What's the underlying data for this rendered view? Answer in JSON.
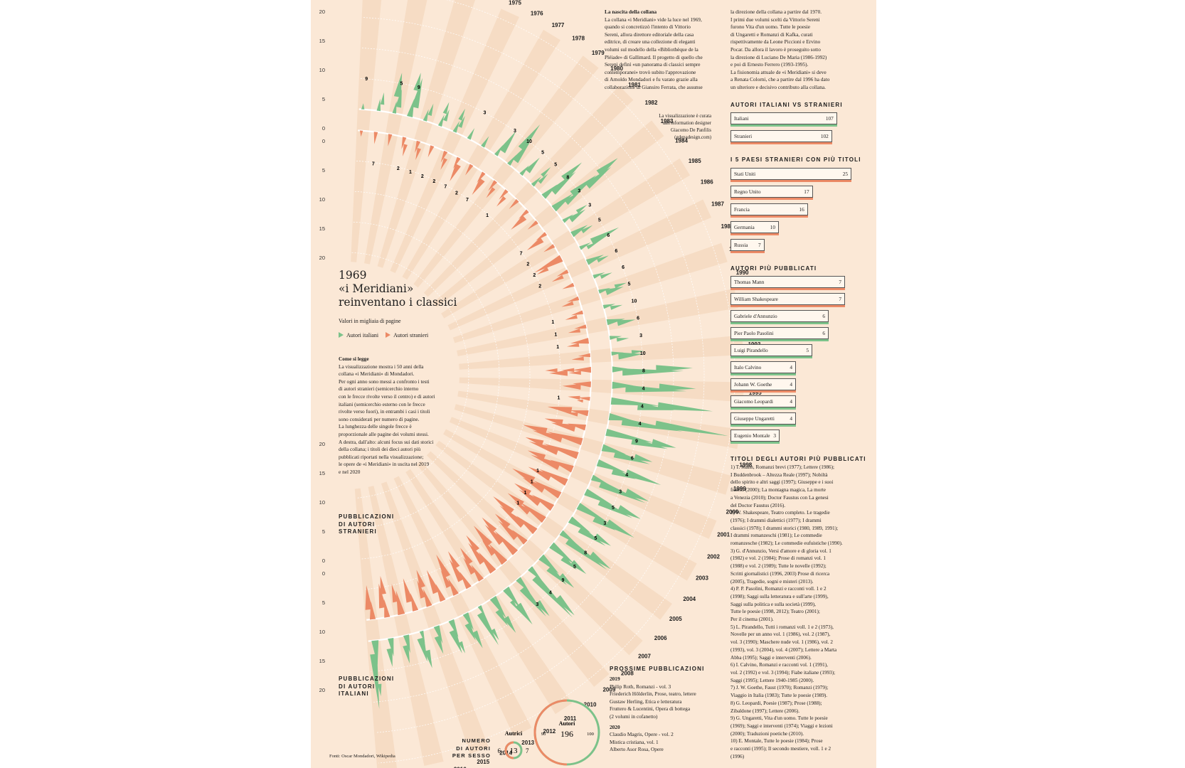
{
  "headline": {
    "year": "1969",
    "line2": "«i Meridiani»",
    "line3": "reinventano i classici",
    "subtitle": "Valori in migliaia di pagine"
  },
  "legend": {
    "italian": "Autori italiani",
    "foreign": "Autori stranieri",
    "italian_color": "#7cc28a",
    "foreign_color": "#ec8a66"
  },
  "howto": {
    "heading": "Come si legge",
    "lines": [
      "La visualizzazione mostra i 50 anni della",
      "collana «i Meridiani» di Mondadori.",
      "Per ogni anno sono messi a confronto i testi",
      "di autori stranieri (semicerchio interno",
      "con le frecce rivolte verso il centro) e di autori",
      "italiani (semicerchio esterno con le frecce",
      "rivolte verso fuori), in entrambi i casi i titoli",
      "sono considerati per numero di pagine.",
      "La lunghezza delle singole frecce è",
      "proporzionale alle pagine dei volumi stessi.",
      "A destra, dall'alto: alcuni focus sui dati storici",
      "della collana; i titoli dei dieci autori più",
      "pubblicati riportati nella visualizzazione;",
      "le opere de «i Meridiani» in uscita nel 2019",
      "e nel 2020"
    ]
  },
  "section_labels": {
    "foreign": [
      "PUBBLICAZIONI",
      "DI AUTORI",
      "STRANIERI"
    ],
    "italian": [
      "PUBBLICAZIONI",
      "DI AUTORI",
      "ITALIANI"
    ]
  },
  "intro": {
    "heading": "La nascita della collana",
    "col1": [
      "La collana «i Meridiani» vide la luce nel 1969,",
      "quando si concretizzò l'intento di Vittorio",
      "Sereni, allora direttore editoriale della casa",
      "editrice, di creare una collezione di eleganti",
      "volumi sul modello della «Bibliothèque de la",
      "Pléiade» di Gallimard. Il progetto di quello che",
      "Sereni definì «un panorama di classici sempre",
      "contemporanei» trovò subito l'approvazione",
      "di Arnoldo Mondadori e fu varato grazie alla",
      "collaborazione di Giansiro Ferrata, che assunse"
    ],
    "col2": [
      "la direzione della collana a partire dal 1970.",
      "I primi due volumi scelti da Vittorio Sereni",
      "furono Vita d'un uomo. Tutte le poesie",
      "di Ungaretti e Romanzi di Kafka, curati",
      "rispettivamente da Leone Piccioni e Ervino",
      "Pocar. Da allora il lavoro è proseguito sotto",
      "la direzione di Luciano De Maria (1986-1992)",
      "e poi di Ernesto Ferrero (1993-1995).",
      "La fisionomia attuale de «i Meridiani» si deve",
      "a Renata Colorni, che a partire dal 1996 ha dato",
      "un ulteriore e decisivo contributo alla collana."
    ]
  },
  "credit": [
    "La visualizzazione è curata",
    "dall'information designer",
    "Giacomo De Panfilis",
    "(gdepadesign.com)"
  ],
  "panels": {
    "it_vs_st": {
      "header": "AUTORI ITALIANI VS STRANIERI",
      "rows": [
        {
          "label": "Italiani",
          "value": 107,
          "kind": "it"
        },
        {
          "label": "Stranieri",
          "value": 102,
          "kind": "st"
        }
      ]
    },
    "countries": {
      "header": "I 5 PAESI STRANIERI CON PIÙ TITOLI",
      "rows": [
        {
          "label": "Stati Uniti",
          "value": 25,
          "kind": "st"
        },
        {
          "label": "Regno Unito",
          "value": 17,
          "kind": "st"
        },
        {
          "label": "Francia",
          "value": 16,
          "kind": "st"
        },
        {
          "label": "Germania",
          "value": 10,
          "kind": "st"
        },
        {
          "label": "Russia",
          "value": 7,
          "kind": "st"
        }
      ]
    },
    "authors": {
      "header": "AUTORI PIÙ PUBBLICATI",
      "rows": [
        {
          "label": "Thomas Mann",
          "value": 7,
          "kind": "st"
        },
        {
          "label": "William Shakespeare",
          "value": 7,
          "kind": "st"
        },
        {
          "label": "Gabriele d'Annunzio",
          "value": 6,
          "kind": "it"
        },
        {
          "label": "Pier Paolo Pasolini",
          "value": 6,
          "kind": "it"
        },
        {
          "label": "Luigi Pirandello",
          "value": 5,
          "kind": "it"
        },
        {
          "label": "Italo Calvino",
          "value": 4,
          "kind": "it"
        },
        {
          "label": "Johann W. Goethe",
          "value": 4,
          "kind": "st"
        },
        {
          "label": "Giacomo Leopardi",
          "value": 4,
          "kind": "it"
        },
        {
          "label": "Giuseppe Ungaretti",
          "value": 4,
          "kind": "it"
        },
        {
          "label": "Eugenio Montale",
          "value": 3,
          "kind": "it"
        }
      ]
    }
  },
  "titles": {
    "header": "TITOLI DEGLI AUTORI PIÙ PUBBLICATI",
    "lines": [
      "1) T. Mann, Romanzi brevi (1977); Lettere (1986);",
      "I Buddenbrook – Altezza Reale (1997); Nobiltà",
      "dello spirito e altri saggi (1997); Giuseppe e i suoi",
      "fratelli (2000); La montagna magica, La morte",
      "a Venezia (2010); Doctor Faustus con La genesi",
      "del Doctor Faustus (2016).",
      "2) W. Shakespeare, Teatro completo. Le tragedie",
      "(1976); I drammi dialettici (1977); I drammi",
      "classici (1978); I drammi storici (1980, 1989, 1991);",
      "I drammi romanzeschi (1981); Le commedie",
      "romanzesche (1982); Le commedie eufuistiche (1990).",
      "3) G. d'Annunzio, Versi d'amore e di gloria vol. 1",
      "(1982) e vol. 2 (1984); Prose di romanzi vol. 1",
      "(1988) e vol. 2 (1989); Tutte le novelle (1992);",
      "Scritti giornalistici (1996, 2003) Prose di ricerca",
      "(2005), Tragedie, sogni e misteri (2013).",
      "4) P. P. Pasolini, Romanzi e racconti voll. 1 e 2",
      "(1998); Saggi sulla letteratura e sull'arte (1999),",
      "Saggi sulla politica e sulla società (1999),",
      "Tutte le poesie (1998, 2012); Teatro (2001);",
      "Per il cinema (2001).",
      "5) L. Pirandello, Tutti i romanzi voll. 1 e 2 (1973),",
      "Novelle per un anno vol. 1 (1986), vol. 2 (1987),",
      "vol. 3 (1990); Maschere nude vol. 1 (1986), vol. 2",
      "(1993), vol. 3 (2004), vol. 4 (2007); Lettere a Marta",
      "Abba (1995); Saggi e interventi (2006).",
      "6) I. Calvino, Romanzi e racconti vol. 1 (1991),",
      "vol. 2 (1992) e vol. 3 (1994); Fiabe italiane (1993);",
      "Saggi (1995); Lettere 1940-1985 (2000).",
      "7) J. W. Goethe, Faust (1970); Romanzi (1979);",
      "Viaggio in Italia (1983); Tutte le poesie (1989).",
      "8) G. Leopardi, Poesie (1987); Prose (1988);",
      "Zibaldone (1997); Lettere (2006).",
      "9) G. Ungaretti, Vita d'un uomo. Tutte le poesie",
      "(1969); Saggi e interventi (1974); Viaggi e lezioni",
      "(2000); Traduzioni poetiche (2010).",
      "10) E. Montale, Tutte le poesie (1984); Prose",
      "e racconti (1995); Il secondo mestiere, voll. 1 e 2",
      "(1996)"
    ]
  },
  "next": {
    "header": "PROSSIME PUBBLICAZIONI",
    "y1": "2019",
    "list1": [
      "Philip Roth, Romanzi - vol. 3",
      "Friederich Hölderlin, Prose, teatro, lettere",
      "Gustaw Herling, Etica e letteratura",
      "Fruttero & Lucentini, Opera di bottega",
      "(2 volumi in cofanetto)"
    ],
    "y2": "2020",
    "list2": [
      "Claudio Magris, Opere - vol. 2",
      "Mistica cristiana, vol. 1",
      "Alberto Asor Rosa, Opere"
    ]
  },
  "gender": {
    "label": [
      "NUMERO",
      "DI AUTORI",
      "PER SESSO"
    ],
    "small_title": "Autrici",
    "small_total": "13",
    "small_left": "6",
    "small_right": "7",
    "big_title": "Autori",
    "big_total": "196",
    "big_left": "96",
    "big_right": "100"
  },
  "sources": "Fonti: Oscar Mondadori, Wikipedia",
  "chart_data": {
    "type": "radial arrows",
    "years": [
      1969,
      1970,
      1971,
      1972,
      1973,
      1974,
      1975,
      1976,
      1977,
      1978,
      1979,
      1980,
      1981,
      1982,
      1983,
      1984,
      1985,
      1986,
      1987,
      1988,
      1989,
      1990,
      1991,
      1992,
      1993,
      1994,
      1995,
      1996,
      1997,
      1998,
      1999,
      2000,
      2001,
      2002,
      2003,
      2004,
      2005,
      2006,
      2007,
      2008,
      2009,
      2010,
      2011,
      2012,
      2013,
      2014,
      2015,
      2016,
      2017,
      2018,
      2019
    ],
    "scale_ticks": [
      "0",
      "5",
      "10",
      "15",
      "20"
    ],
    "series": [
      {
        "name": "Autori italiani",
        "values": [
          [
            1
          ],
          [
            2,
            2
          ],
          [
            2,
            3,
            4
          ],
          [
            3,
            5,
            3
          ],
          [
            2,
            2
          ],
          [
            2,
            2,
            2
          ],
          [
            2,
            2,
            2
          ],
          [
            2
          ],
          [
            2
          ],
          [
            2,
            4
          ],
          [
            2,
            4,
            5
          ],
          [
            2,
            3
          ],
          [
            2,
            2,
            2
          ],
          [
            3,
            5,
            4
          ],
          [
            4,
            3,
            5,
            5,
            4
          ],
          [
            2,
            3,
            2
          ],
          [
            3,
            2
          ],
          [
            2,
            2,
            5
          ],
          [
            3,
            2
          ],
          [
            2,
            2
          ],
          [
            2,
            3,
            2
          ],
          [
            2,
            2
          ],
          [
            3,
            3
          ],
          [
            2,
            2
          ],
          [
            2,
            4,
            2
          ],
          [
            3,
            10,
            6
          ],
          [
            4,
            10,
            6
          ],
          [
            8,
            6,
            9
          ],
          [
            4,
            10,
            12
          ],
          [
            8,
            6,
            4
          ],
          [
            4,
            6,
            3
          ],
          [
            5,
            4,
            6
          ],
          [
            3,
            8,
            4
          ],
          [
            5,
            6,
            4
          ],
          [
            6,
            4,
            5
          ],
          [
            4,
            5,
            3
          ],
          [
            3,
            8,
            4
          ],
          [
            5,
            3,
            3
          ],
          [
            4,
            4,
            3
          ],
          [
            3,
            9,
            4
          ],
          [
            3,
            6,
            3
          ],
          [
            4,
            2,
            4
          ],
          [
            4,
            3,
            3
          ],
          [
            2,
            6,
            2
          ],
          [
            3,
            3,
            3
          ],
          [
            3,
            4,
            2
          ],
          [
            3,
            3
          ],
          [
            2,
            4,
            3
          ],
          [
            3,
            3
          ],
          [
            3,
            3
          ],
          [
            4,
            9,
            2
          ]
        ]
      },
      {
        "name": "Autori stranieri",
        "values": [
          [
            1
          ],
          [
            2
          ],
          [
            2
          ],
          [
            2,
            2
          ],
          [
            2,
            2
          ],
          [
            2
          ],
          [
            2,
            2
          ],
          [
            2,
            3
          ],
          [
            2
          ],
          [
            2,
            3
          ],
          [
            2,
            2
          ],
          [
            2,
            2
          ],
          [
            2
          ],
          [
            2,
            3
          ],
          [
            2
          ],
          [
            2,
            3
          ],
          [
            2
          ],
          [
            5,
            2
          ],
          [
            2,
            2
          ],
          [
            2
          ],
          [
            2,
            2
          ],
          [
            2,
            2
          ],
          [
            2,
            2
          ],
          [
            3,
            2
          ],
          [
            2,
            2
          ],
          [
            3,
            2,
            2,
            3,
            2
          ],
          [
            3,
            3
          ],
          [
            2,
            1,
            2
          ],
          [
            3,
            2,
            4
          ],
          [
            3,
            4,
            3
          ],
          [
            6,
            5,
            4
          ],
          [
            6,
            5,
            3
          ],
          [
            4,
            5,
            3
          ],
          [
            5,
            4
          ],
          [
            5,
            4,
            4
          ],
          [
            4,
            4,
            3
          ],
          [
            5,
            3,
            3
          ],
          [
            4,
            5,
            4
          ],
          [
            3,
            4,
            3
          ],
          [
            5,
            4,
            3
          ],
          [
            4,
            3,
            4
          ],
          [
            4,
            4,
            3
          ],
          [
            3,
            3,
            3
          ],
          [
            3,
            4,
            3
          ],
          [
            3,
            3,
            4
          ],
          [
            3,
            4
          ],
          [
            3,
            3,
            3
          ],
          [
            3,
            4
          ],
          [
            4,
            3
          ],
          [
            3,
            4,
            3
          ],
          [
            3,
            4
          ]
        ]
      }
    ],
    "labeled_counts": {
      "italiani": {
        "1969": 9,
        "1971": 5,
        "1972": 9,
        "1976": 3,
        "1978": 3,
        "1979": 10,
        "1980": 5,
        "1981": 5,
        "1982": 8,
        "1983": 3,
        "1984": 3,
        "1985": 5,
        "1986": 6,
        "1987": 6,
        "1988": 6,
        "1989": 5,
        "1990": 10,
        "1991": 6,
        "1992": 3,
        "1993": 10,
        "1994": 8,
        "1995": 4,
        "1996": 4,
        "1997": 4,
        "1998": 9,
        "1999": 6,
        "2000": 4,
        "2001": 3,
        "2002": 5,
        "2003": 3,
        "2004": 5,
        "2005": 8,
        "2006": 5,
        "2007": 9,
        "2008": 4,
        "2009": 3
      },
      "stranieri": {
        "1970": 7,
        "1972": 2,
        "1973": 1,
        "1974": 2,
        "1975": 2,
        "1976": 7,
        "1977": 2,
        "1978": 7,
        "1980": 1,
        "1984": 7,
        "1985": 2,
        "1986": 2,
        "1987": 2,
        "1990": 1,
        "1991": 1,
        "1992": 1,
        "1996": 1,
        "2002": 1,
        "2003": 1,
        "2004": 1,
        "2005": 1
      }
    }
  }
}
